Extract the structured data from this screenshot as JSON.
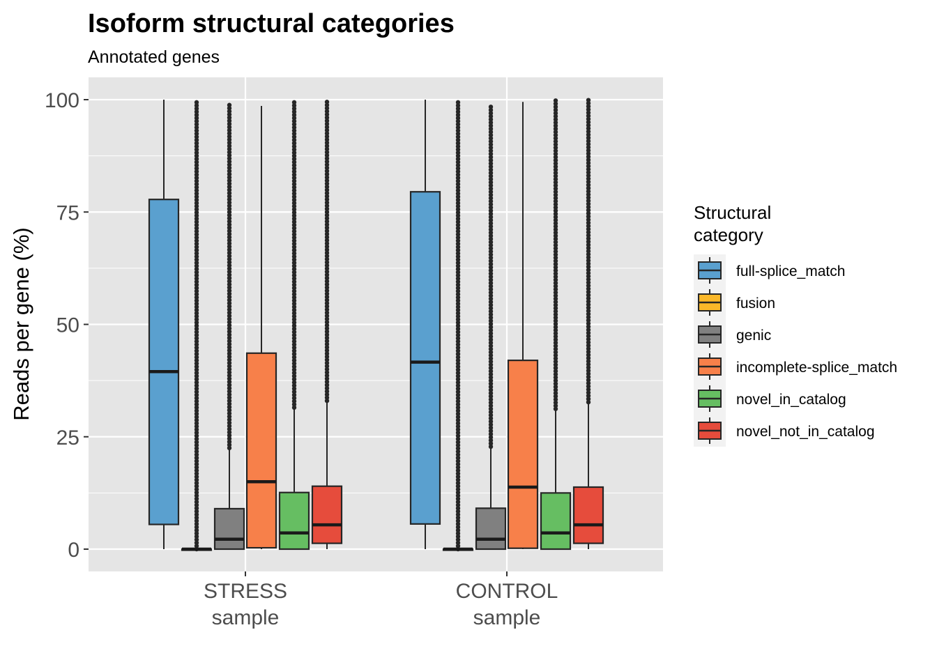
{
  "chart_data": {
    "type": "box",
    "title": "Isoform structural categories",
    "subtitle": "Annotated genes",
    "xlabel": "",
    "ylabel": "Reads per gene (%)",
    "ylim": [
      -5,
      105
    ],
    "yticks": [
      0,
      25,
      50,
      75,
      100
    ],
    "grid": true,
    "legend_title": "Structural category",
    "legend_position": "right",
    "categories": [
      "STRESS sample",
      "CONTROL sample"
    ],
    "category_lines": [
      [
        "STRESS",
        "sample"
      ],
      [
        "CONTROL",
        "sample"
      ]
    ],
    "series": [
      {
        "name": "full-splice_match",
        "color": "#5aa0cf",
        "boxes": [
          {
            "min": 0,
            "q1": 5.5,
            "median": 39.5,
            "q3": 77.8,
            "max": 100,
            "outliers": "none"
          },
          {
            "min": 0,
            "q1": 5.6,
            "median": 41.6,
            "q3": 79.5,
            "max": 100,
            "outliers": "none"
          }
        ]
      },
      {
        "name": "fusion",
        "color": "#fbb829",
        "boxes": [
          null,
          null
        ]
      },
      {
        "name": "genic",
        "color": "#808080",
        "boxes": [
          {
            "min": 0,
            "q1": 0,
            "median": 0,
            "q3": 0,
            "max": 0,
            "outliers": "0-100"
          },
          {
            "min": 0,
            "q1": 0,
            "median": 0,
            "q3": 0,
            "max": 0,
            "outliers": "0-100"
          }
        ]
      },
      {
        "name": "genic",
        "color": "#808080",
        "boxes": [
          {
            "min": 0,
            "q1": 0,
            "median": 2.2,
            "q3": 9,
            "max": 22.5,
            "outliers": "22.5-99"
          },
          {
            "min": 0,
            "q1": 0,
            "median": 2.2,
            "q3": 9.1,
            "max": 22.8,
            "outliers": "22.8-99"
          }
        ]
      },
      {
        "name": "incomplete-splice_match",
        "color": "#f7804a",
        "boxes": [
          {
            "min": 0,
            "q1": 0.3,
            "median": 15,
            "q3": 43.6,
            "max": 98.6,
            "outliers": "none"
          },
          {
            "min": 0,
            "q1": 0.2,
            "median": 13.8,
            "q3": 42,
            "max": 99.5,
            "outliers": "none"
          }
        ]
      },
      {
        "name": "novel_in_catalog",
        "color": "#66be62",
        "boxes": [
          {
            "min": 0,
            "q1": 0,
            "median": 3.6,
            "q3": 12.6,
            "max": 31.5,
            "outliers": "31.5-100"
          },
          {
            "min": 0,
            "q1": 0,
            "median": 3.6,
            "q3": 12.5,
            "max": 31.2,
            "outliers": "31.2-100"
          }
        ]
      },
      {
        "name": "novel_not_in_catalog",
        "color": "#e64c3c",
        "boxes": [
          {
            "min": 0,
            "q1": 1.3,
            "median": 5.4,
            "q3": 14,
            "max": 33,
            "outliers": "33-100"
          },
          {
            "min": 0,
            "q1": 1.3,
            "median": 5.4,
            "q3": 13.8,
            "max": 32.7,
            "outliers": "32.7-100"
          }
        ]
      }
    ],
    "legend": [
      {
        "label": "full-splice_match",
        "color": "#5aa0cf"
      },
      {
        "label": "fusion",
        "color": "#fbb829"
      },
      {
        "label": "genic",
        "color": "#808080"
      },
      {
        "label": "incomplete-splice_match",
        "color": "#f7804a"
      },
      {
        "label": "novel_in_catalog",
        "color": "#66be62"
      },
      {
        "label": "novel_not_in_catalog",
        "color": "#e64c3c"
      }
    ]
  }
}
